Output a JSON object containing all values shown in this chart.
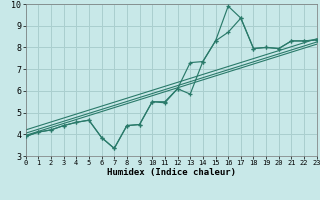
{
  "xlabel": "Humidex (Indice chaleur)",
  "bg_color": "#c8e8e8",
  "grid_color": "#aacece",
  "line_color": "#2a7a6a",
  "xlim": [
    0,
    23
  ],
  "ylim": [
    3,
    10
  ],
  "xticks": [
    0,
    1,
    2,
    3,
    4,
    5,
    6,
    7,
    8,
    9,
    10,
    11,
    12,
    13,
    14,
    15,
    16,
    17,
    18,
    19,
    20,
    21,
    22,
    23
  ],
  "yticks": [
    3,
    4,
    5,
    6,
    7,
    8,
    9,
    10
  ],
  "s1_x": [
    0,
    1,
    2,
    3,
    4,
    5,
    6,
    7,
    8,
    9,
    10,
    11,
    12,
    13,
    14,
    15,
    16,
    17,
    18,
    19,
    20,
    21,
    22,
    23
  ],
  "s1_y": [
    3.9,
    4.1,
    4.2,
    4.4,
    4.55,
    4.65,
    3.85,
    3.35,
    4.4,
    4.45,
    5.5,
    5.45,
    6.1,
    5.85,
    7.35,
    8.3,
    8.7,
    9.35,
    7.95,
    8.0,
    7.95,
    8.3,
    8.3,
    8.35
  ],
  "s2_x": [
    0,
    1,
    2,
    3,
    4,
    5,
    6,
    7,
    8,
    9,
    10,
    11,
    12,
    13,
    14,
    15,
    16,
    17,
    18,
    19,
    20,
    21,
    22,
    23
  ],
  "s2_y": [
    3.9,
    4.1,
    4.2,
    4.4,
    4.55,
    4.65,
    3.85,
    3.35,
    4.4,
    4.45,
    5.5,
    5.5,
    6.1,
    7.3,
    7.35,
    8.3,
    9.9,
    9.35,
    7.95,
    8.0,
    7.95,
    8.3,
    8.3,
    8.35
  ],
  "trend1_x": [
    0,
    23
  ],
  "trend1_y": [
    4.05,
    8.25
  ],
  "trend2_x": [
    0,
    23
  ],
  "trend2_y": [
    4.2,
    8.4
  ],
  "trend3_x": [
    0,
    23
  ],
  "trend3_y": [
    3.95,
    8.15
  ]
}
